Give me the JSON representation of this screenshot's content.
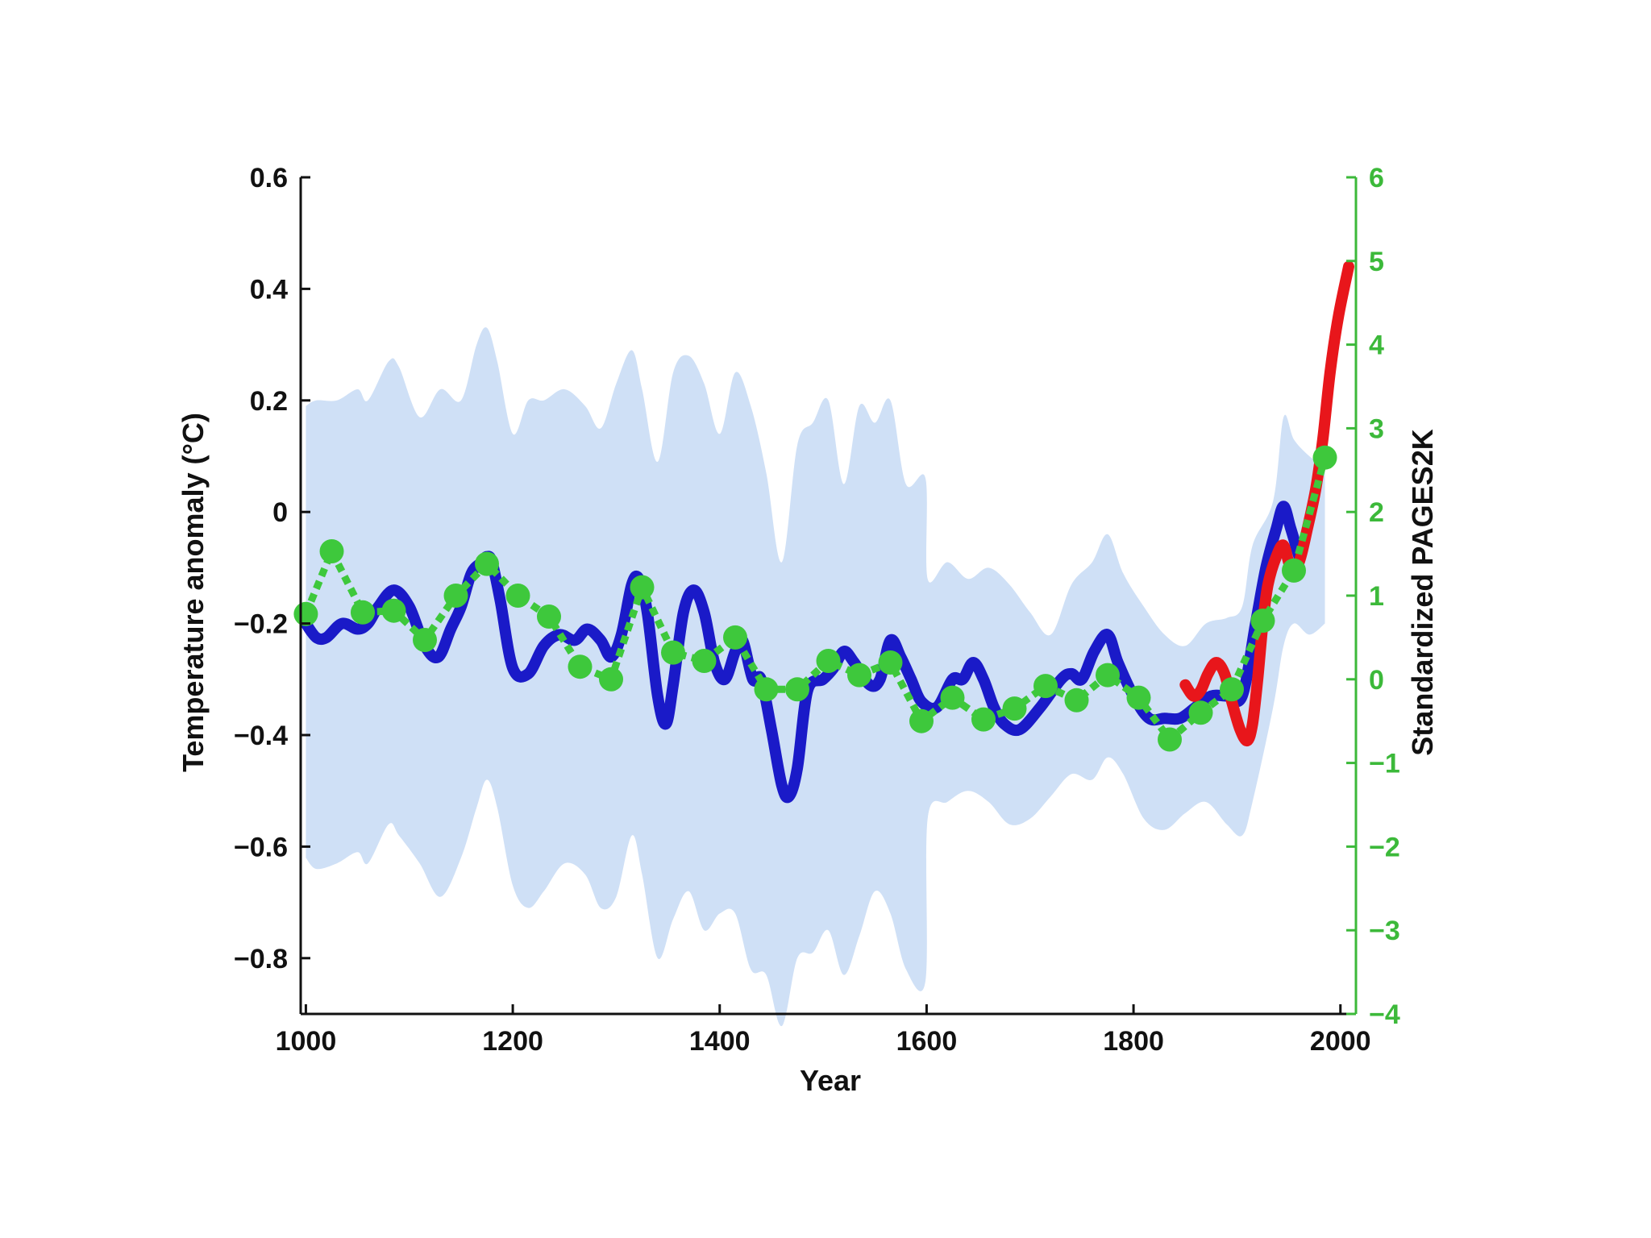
{
  "chart_data": {
    "type": "line",
    "xlabel": "Year",
    "ylabel": "Temperature anomaly (°C)",
    "ylabel_right": "Standardized PAGES2K",
    "xlim": [
      995,
      2015
    ],
    "ylim": [
      -0.9,
      0.6
    ],
    "ylim_right": [
      -4,
      6
    ],
    "x_ticks": [
      "1000",
      "1200",
      "1400",
      "1600",
      "1800",
      "2000"
    ],
    "y_ticks": [
      "0.6",
      "0.4",
      "0.2",
      "0",
      "−0.2",
      "−0.4",
      "−0.6",
      "−0.8"
    ],
    "y_ticks_right": [
      "6",
      "5",
      "4",
      "3",
      "2",
      "1",
      "0",
      "−1",
      "−2",
      "−3",
      "−4"
    ],
    "colors": {
      "reconstruction": "#1a1ac8",
      "instrumental": "#e8161b",
      "pages2k": "#3ec83c",
      "uncertainty": "#cfe0f6",
      "axis": "#111111",
      "right_axis": "#3cb93a"
    },
    "uncertainty_band": {
      "x": [
        1000,
        1010,
        1030,
        1050,
        1060,
        1080,
        1090,
        1110,
        1130,
        1150,
        1165,
        1175,
        1185,
        1200,
        1215,
        1230,
        1250,
        1270,
        1285,
        1300,
        1315,
        1325,
        1340,
        1355,
        1370,
        1385,
        1400,
        1415,
        1430,
        1445,
        1460,
        1475,
        1490,
        1505,
        1520,
        1535,
        1550,
        1565,
        1580,
        1599,
        1601,
        1620,
        1640,
        1660,
        1680,
        1700,
        1720,
        1740,
        1760,
        1775,
        1790,
        1810,
        1830,
        1850,
        1870,
        1890,
        1905,
        1915,
        1935,
        1945,
        1955,
        1970,
        1985
      ],
      "upper": [
        0.19,
        0.2,
        0.2,
        0.22,
        0.2,
        0.27,
        0.26,
        0.17,
        0.22,
        0.2,
        0.3,
        0.33,
        0.27,
        0.14,
        0.2,
        0.2,
        0.22,
        0.19,
        0.15,
        0.23,
        0.29,
        0.22,
        0.09,
        0.25,
        0.28,
        0.23,
        0.14,
        0.25,
        0.19,
        0.07,
        -0.09,
        0.12,
        0.16,
        0.2,
        0.05,
        0.19,
        0.16,
        0.2,
        0.05,
        0.06,
        -0.12,
        -0.09,
        -0.12,
        -0.1,
        -0.13,
        -0.18,
        -0.22,
        -0.13,
        -0.09,
        -0.04,
        -0.11,
        -0.17,
        -0.22,
        -0.24,
        -0.2,
        -0.19,
        -0.17,
        -0.06,
        0.02,
        0.17,
        0.13,
        0.1,
        0.08
      ],
      "lower": [
        -0.62,
        -0.64,
        -0.63,
        -0.61,
        -0.63,
        -0.56,
        -0.58,
        -0.63,
        -0.69,
        -0.62,
        -0.53,
        -0.48,
        -0.53,
        -0.67,
        -0.71,
        -0.68,
        -0.63,
        -0.65,
        -0.71,
        -0.69,
        -0.58,
        -0.65,
        -0.8,
        -0.73,
        -0.68,
        -0.75,
        -0.72,
        -0.72,
        -0.82,
        -0.83,
        -0.98,
        -0.8,
        -0.79,
        -0.75,
        -0.83,
        -0.76,
        -0.68,
        -0.72,
        -0.82,
        -0.84,
        -0.55,
        -0.52,
        -0.5,
        -0.52,
        -0.56,
        -0.55,
        -0.51,
        -0.47,
        -0.48,
        -0.44,
        -0.47,
        -0.55,
        -0.57,
        -0.54,
        -0.52,
        -0.56,
        -0.58,
        -0.52,
        -0.35,
        -0.24,
        -0.2,
        -0.22,
        -0.2
      ]
    },
    "series": [
      {
        "key": "reconstruction",
        "axis": "left",
        "x": [
          1000,
          1010,
          1020,
          1035,
          1050,
          1060,
          1070,
          1085,
          1100,
          1115,
          1128,
          1140,
          1150,
          1160,
          1170,
          1175,
          1180,
          1188,
          1200,
          1215,
          1230,
          1245,
          1260,
          1272,
          1285,
          1295,
          1305,
          1315,
          1322,
          1330,
          1340,
          1348,
          1355,
          1365,
          1375,
          1385,
          1395,
          1405,
          1415,
          1422,
          1432,
          1440,
          1450,
          1460,
          1467,
          1475,
          1485,
          1500,
          1510,
          1520,
          1530,
          1545,
          1555,
          1565,
          1575,
          1585,
          1595,
          1610,
          1625,
          1635,
          1645,
          1655,
          1665,
          1675,
          1690,
          1710,
          1730,
          1740,
          1750,
          1762,
          1775,
          1785,
          1800,
          1815,
          1830,
          1845,
          1860,
          1875,
          1890,
          1905,
          1918,
          1928,
          1938,
          1945,
          1952,
          1960
        ],
        "y": [
          -0.2,
          -0.225,
          -0.225,
          -0.2,
          -0.21,
          -0.2,
          -0.17,
          -0.14,
          -0.17,
          -0.24,
          -0.26,
          -0.21,
          -0.17,
          -0.11,
          -0.09,
          -0.08,
          -0.09,
          -0.16,
          -0.28,
          -0.29,
          -0.24,
          -0.22,
          -0.23,
          -0.21,
          -0.23,
          -0.26,
          -0.22,
          -0.13,
          -0.12,
          -0.18,
          -0.33,
          -0.38,
          -0.31,
          -0.18,
          -0.14,
          -0.18,
          -0.27,
          -0.3,
          -0.25,
          -0.23,
          -0.3,
          -0.3,
          -0.39,
          -0.49,
          -0.51,
          -0.46,
          -0.32,
          -0.3,
          -0.28,
          -0.25,
          -0.27,
          -0.31,
          -0.3,
          -0.23,
          -0.26,
          -0.3,
          -0.34,
          -0.35,
          -0.3,
          -0.3,
          -0.27,
          -0.3,
          -0.35,
          -0.38,
          -0.39,
          -0.35,
          -0.3,
          -0.29,
          -0.3,
          -0.25,
          -0.22,
          -0.27,
          -0.33,
          -0.37,
          -0.37,
          -0.37,
          -0.35,
          -0.33,
          -0.33,
          -0.33,
          -0.2,
          -0.1,
          -0.03,
          0.01,
          -0.03,
          -0.08
        ]
      },
      {
        "key": "instrumental",
        "axis": "left",
        "x": [
          1850,
          1858,
          1865,
          1872,
          1880,
          1888,
          1895,
          1903,
          1910,
          1915,
          1920,
          1925,
          1930,
          1938,
          1945,
          1952,
          1960,
          1968,
          1976,
          1983,
          1990,
          1998,
          2008
        ],
        "y": [
          -0.31,
          -0.33,
          -0.32,
          -0.29,
          -0.27,
          -0.29,
          -0.34,
          -0.39,
          -0.41,
          -0.38,
          -0.3,
          -0.2,
          -0.13,
          -0.08,
          -0.06,
          -0.1,
          -0.09,
          -0.03,
          0.04,
          0.13,
          0.25,
          0.35,
          0.44
        ]
      },
      {
        "key": "pages2k",
        "axis": "right",
        "markers": true,
        "x": [
          1000,
          1025,
          1055,
          1085,
          1115,
          1145,
          1175,
          1205,
          1235,
          1265,
          1295,
          1325,
          1355,
          1385,
          1415,
          1445,
          1475,
          1505,
          1535,
          1565,
          1595,
          1625,
          1655,
          1685,
          1715,
          1745,
          1775,
          1805,
          1835,
          1865,
          1895,
          1925,
          1955,
          1985
        ],
        "y": [
          0.78,
          1.53,
          0.8,
          0.82,
          0.47,
          1.0,
          1.38,
          1.0,
          0.75,
          0.15,
          0.0,
          1.1,
          0.32,
          0.22,
          0.5,
          -0.12,
          -0.12,
          0.22,
          0.05,
          0.2,
          -0.5,
          -0.22,
          -0.48,
          -0.35,
          -0.08,
          -0.25,
          0.05,
          -0.22,
          -0.72,
          -0.4,
          -0.12,
          0.7,
          1.3,
          2.65
        ]
      }
    ]
  }
}
